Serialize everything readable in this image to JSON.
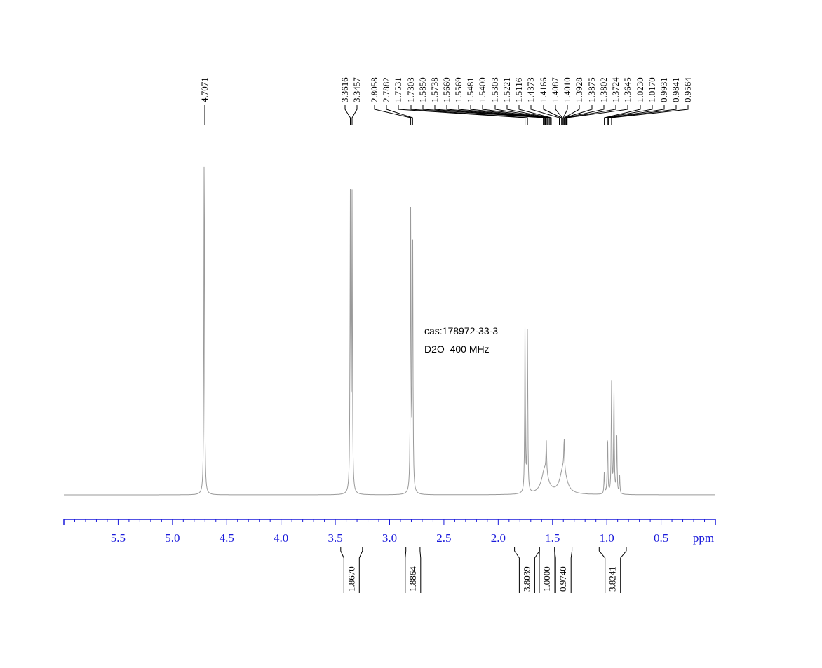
{
  "chart_data": {
    "type": "line",
    "xlabel": "ppm",
    "xlim": [
      6.0,
      0.0
    ],
    "x_direction": "reversed",
    "grid": false,
    "annotations": [
      "cas:178972-33-3",
      "D2O  400 MHz"
    ],
    "ticks": {
      "major": [
        5.5,
        5.0,
        4.5,
        4.0,
        3.5,
        3.0,
        2.5,
        2.0,
        1.5,
        1.0,
        0.5
      ],
      "labels": [
        "5.5",
        "5.0",
        "4.5",
        "4.0",
        "3.5",
        "3.0",
        "2.5",
        "2.0",
        "1.5",
        "1.0",
        "0.5"
      ],
      "minor_step": 0.1
    },
    "peaks": [
      {
        "group": "A",
        "labels": [
          "4.7071"
        ]
      },
      {
        "group": "B",
        "labels": [
          "3.3616",
          "3.3457"
        ]
      },
      {
        "group": "C",
        "labels": [
          "2.8058",
          "2.7882",
          "1.7531",
          "1.7303",
          "1.5850",
          "1.5738",
          "1.5660",
          "1.5569",
          "1.5481",
          "1.5400",
          "1.5303",
          "1.5221",
          "1.5116",
          "1.4373",
          "1.4166",
          "1.4087",
          "1.4010",
          "1.3928",
          "1.3875",
          "1.3802",
          "1.3724",
          "1.3645",
          "1.0230",
          "1.0170",
          "0.9931",
          "0.9841",
          "0.9564"
        ]
      }
    ],
    "signals": [
      {
        "center": 4.7071,
        "height": 1.0
      },
      {
        "center": 3.3616,
        "height": 0.8
      },
      {
        "center": 3.3457,
        "height": 0.8
      },
      {
        "center": 2.8058,
        "height": 0.77
      },
      {
        "center": 2.7882,
        "height": 0.77
      },
      {
        "center": 1.7531,
        "height": 0.455
      },
      {
        "center": 1.7303,
        "height": 0.45
      },
      {
        "center": 1.5569,
        "height": 0.085
      },
      {
        "center": 1.3928,
        "height": 0.085
      },
      {
        "center": 1.023,
        "height": 0.06
      },
      {
        "center": 0.9931,
        "height": 0.17
      },
      {
        "center": 0.9564,
        "height": 0.31
      },
      {
        "center": 0.9341,
        "height": 0.29
      },
      {
        "center": 0.9081,
        "height": 0.16
      },
      {
        "center": 0.8821,
        "height": 0.05
      }
    ],
    "integrals": [
      {
        "from": 3.45,
        "to": 3.25,
        "value": "1.8670"
      },
      {
        "from": 2.85,
        "to": 2.72,
        "value": "1.8864"
      },
      {
        "from": 1.85,
        "to": 1.62,
        "value": "3.8039"
      },
      {
        "from": 1.62,
        "to": 1.48,
        "value": "1.0000"
      },
      {
        "from": 1.48,
        "to": 1.32,
        "value": "0.9740"
      },
      {
        "from": 1.07,
        "to": 0.82,
        "value": "3.8241"
      }
    ],
    "colors": {
      "spectrum": "#9a9a9a",
      "axis": "#1a1adb",
      "labels": "#000000"
    }
  }
}
